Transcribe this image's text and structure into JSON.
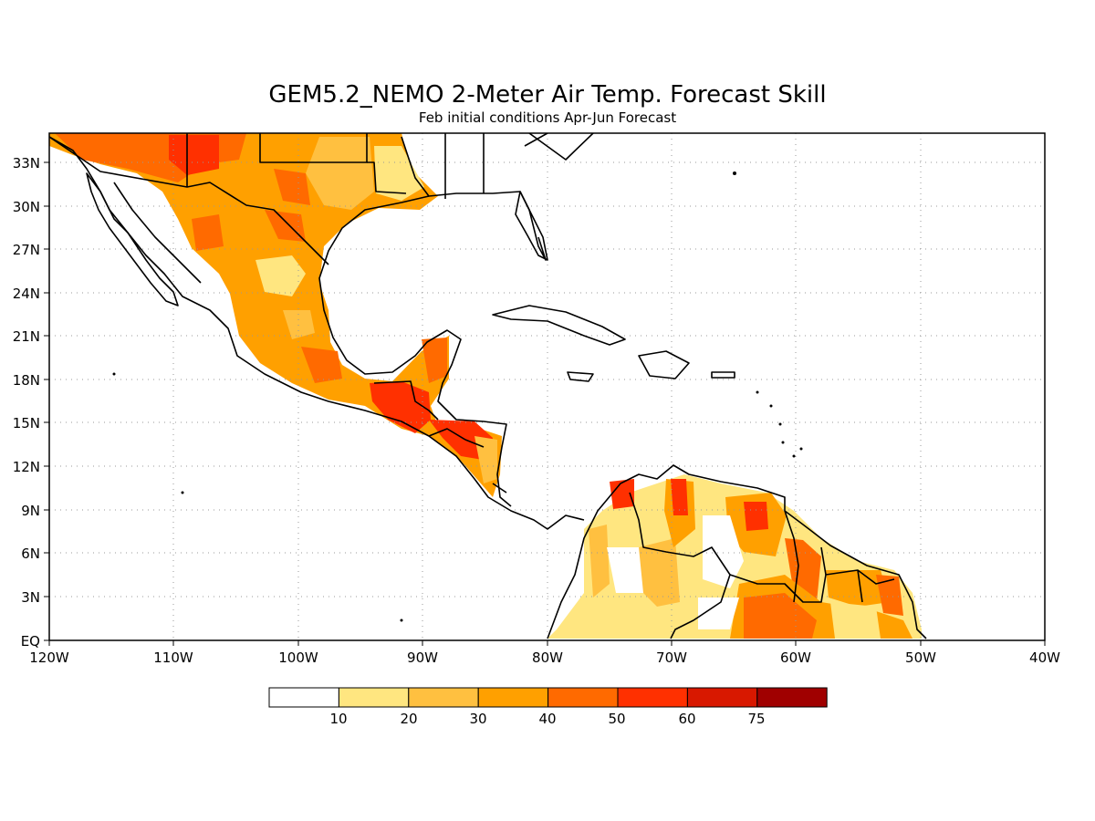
{
  "title": "GEM5.2_NEMO 2-Meter Air Temp. Forecast Skill",
  "subtitle": "Feb initial conditions  Apr-Jun Forecast",
  "map": {
    "lat_labels": [
      "33N",
      "30N",
      "27N",
      "24N",
      "21N",
      "18N",
      "15N",
      "12N",
      "9N",
      "6N",
      "3N",
      "EQ"
    ],
    "lon_labels": [
      "120W",
      "110W",
      "100W",
      "90W",
      "80W",
      "70W",
      "60W",
      "50W",
      "40W"
    ],
    "region": "Central America, Mexico, Caribbean and northern South America",
    "lon_range": [
      -120,
      -40
    ],
    "lat_range": [
      0,
      35
    ],
    "grid": "dotted"
  },
  "legend": {
    "labels": [
      "10",
      "20",
      "30",
      "40",
      "50",
      "60",
      "75"
    ],
    "colors": [
      "#ffffff",
      "#ffe680",
      "#ffc040",
      "#ffa000",
      "#ff6a00",
      "#ff3000",
      "#d81800",
      "#a00000"
    ]
  }
}
